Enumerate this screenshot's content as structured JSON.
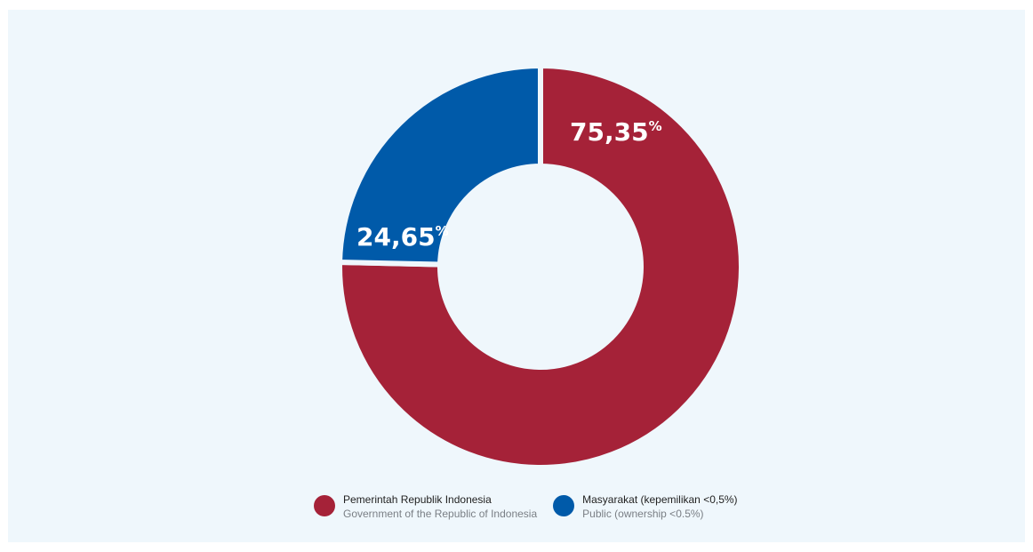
{
  "colors": {
    "background": "#eff7fc",
    "government": "#a52238",
    "public": "#005aa9"
  },
  "chart_data": {
    "type": "pie",
    "variant": "donut",
    "title": "",
    "slices": [
      {
        "label": "Pemerintah Republik Indonesia",
        "label_en": "Government of the Republic of Indonesia",
        "value": 75.35,
        "display_number": "75,35",
        "unit": "%",
        "color": "#a52238"
      },
      {
        "label": "Masyarakat (kepemilikan <0,5%)",
        "label_en": "Public (ownership <0.5%)",
        "value": 24.65,
        "display_number": "24,65",
        "unit": "%",
        "color": "#005aa9"
      }
    ],
    "legend_position": "bottom"
  }
}
